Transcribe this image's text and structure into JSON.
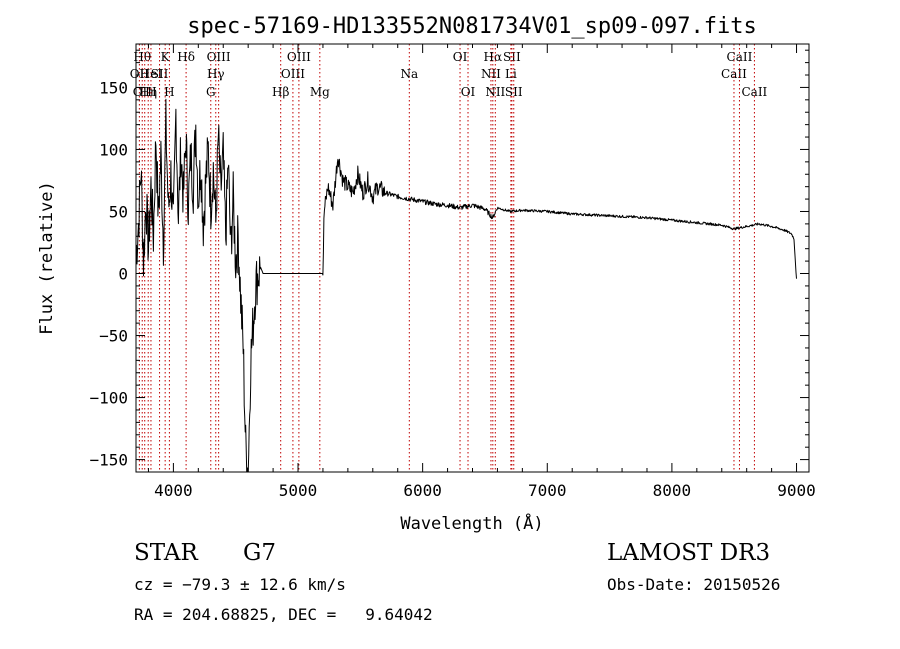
{
  "chart_data": {
    "type": "line",
    "title": "spec-57169-HD133552N081734V01_sp09-097.fits",
    "xlabel": "Wavelength (Å)",
    "ylabel": "Flux (relative)",
    "xlim": [
      3700,
      9100
    ],
    "ylim": [
      -160,
      185
    ],
    "xticks": [
      4000,
      5000,
      6000,
      7000,
      8000,
      9000
    ],
    "xtick_labels": [
      "4000",
      "5000",
      "6000",
      "7000",
      "8000",
      "9000"
    ],
    "yticks": [
      -150,
      -100,
      -50,
      0,
      50,
      100,
      150
    ],
    "ytick_labels": [
      "−150",
      "−100",
      "−50",
      "0",
      "50",
      "100",
      "150"
    ],
    "grid": false,
    "series": [
      {
        "name": "flux",
        "x": [
          3700,
          3720,
          3740,
          3760,
          3780,
          3800,
          3820,
          3840,
          3860,
          3880,
          3900,
          3920,
          3940,
          3960,
          3980,
          4000,
          4020,
          4040,
          4060,
          4080,
          4100,
          4120,
          4140,
          4160,
          4180,
          4200,
          4220,
          4240,
          4260,
          4280,
          4300,
          4320,
          4340,
          4360,
          4380,
          4400,
          4420,
          4440,
          4460,
          4480,
          4500,
          4520,
          4540,
          4560,
          4580,
          4600,
          4620,
          4640,
          4660,
          4680,
          4700,
          4720,
          4800,
          5000,
          5200,
          5210,
          5240,
          5280,
          5320,
          5360,
          5400,
          5440,
          5480,
          5520,
          5560,
          5600,
          5640,
          5700,
          5800,
          5900,
          6000,
          6100,
          6200,
          6300,
          6400,
          6500,
          6562,
          6600,
          6700,
          6800,
          7000,
          7200,
          7400,
          7600,
          7800,
          8000,
          8200,
          8400,
          8500,
          8600,
          8700,
          8800,
          8900,
          8960,
          8980,
          9000
        ],
        "y": [
          15,
          40,
          85,
          10,
          60,
          20,
          70,
          30,
          110,
          45,
          95,
          25,
          120,
          50,
          80,
          35,
          130,
          45,
          100,
          60,
          110,
          55,
          95,
          70,
          120,
          60,
          90,
          40,
          75,
          100,
          55,
          85,
          40,
          110,
          65,
          95,
          30,
          90,
          20,
          60,
          10,
          30,
          -20,
          -60,
          -140,
          -160,
          -70,
          -40,
          -10,
          0,
          5,
          0,
          0,
          0,
          0,
          50,
          70,
          55,
          95,
          75,
          70,
          65,
          80,
          65,
          75,
          62,
          70,
          65,
          62,
          60,
          58,
          56,
          55,
          53,
          55,
          52,
          45,
          53,
          50,
          51,
          50,
          48,
          47,
          46,
          45,
          43,
          41,
          39,
          36,
          38,
          40,
          38,
          35,
          32,
          28,
          -5
        ]
      }
    ],
    "lines": [
      {
        "wavelength": 3727,
        "label": "OII",
        "row": 2
      },
      {
        "wavelength": 3750,
        "label": "Hθ",
        "row": 1
      },
      {
        "wavelength": 3770,
        "label": "OIII",
        "row": 3
      },
      {
        "wavelength": 3798,
        "label": "Hη",
        "row": 3
      },
      {
        "wavelength": 3820,
        "label": "HeI",
        "row": 2
      },
      {
        "wavelength": 3889,
        "label": "SII",
        "row": 2
      },
      {
        "wavelength": 3934,
        "label": "K",
        "row": 1
      },
      {
        "wavelength": 3968,
        "label": "H",
        "row": 3
      },
      {
        "wavelength": 4102,
        "label": "Hδ",
        "row": 1
      },
      {
        "wavelength": 4300,
        "label": "G",
        "row": 3
      },
      {
        "wavelength": 4340,
        "label": "Hγ",
        "row": 2
      },
      {
        "wavelength": 4363,
        "label": "OIII",
        "row": 1
      },
      {
        "wavelength": 4861,
        "label": "Hβ",
        "row": 3
      },
      {
        "wavelength": 4959,
        "label": "OIII",
        "row": 2
      },
      {
        "wavelength": 5007,
        "label": "OIII",
        "row": 1
      },
      {
        "wavelength": 5175,
        "label": "Mg",
        "row": 3
      },
      {
        "wavelength": 5893,
        "label": "Na",
        "row": 2
      },
      {
        "wavelength": 6300,
        "label": "OI",
        "row": 1
      },
      {
        "wavelength": 6364,
        "label": "OI",
        "row": 3
      },
      {
        "wavelength": 6548,
        "label": "NII",
        "row": 2
      },
      {
        "wavelength": 6563,
        "label": "Hα",
        "row": 1
      },
      {
        "wavelength": 6583,
        "label": "NII",
        "row": 3
      },
      {
        "wavelength": 6708,
        "label": "Li",
        "row": 2
      },
      {
        "wavelength": 6716,
        "label": "SII",
        "row": 1
      },
      {
        "wavelength": 6731,
        "label": "SII",
        "row": 3
      },
      {
        "wavelength": 8498,
        "label": "CaII",
        "row": 2
      },
      {
        "wavelength": 8542,
        "label": "CaII",
        "row": 1
      },
      {
        "wavelength": 8662,
        "label": "CaII",
        "row": 3
      }
    ]
  },
  "info": {
    "object_type": "STAR",
    "subclass": "G7",
    "survey": "LAMOST DR3",
    "cz": "cz = −79.3 ± 12.6 km/s",
    "obs_date": "Obs-Date: 20150526",
    "coords": "RA = 204.68825, DEC =   9.64042"
  }
}
